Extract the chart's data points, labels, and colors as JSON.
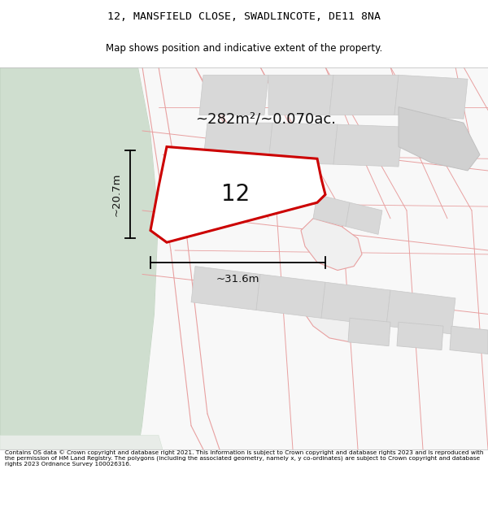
{
  "title": "12, MANSFIELD CLOSE, SWADLINCOTE, DE11 8NA",
  "subtitle": "Map shows position and indicative extent of the property.",
  "footer": "Contains OS data © Crown copyright and database right 2021. This information is subject to Crown copyright and database rights 2023 and is reproduced with the permission of HM Land Registry. The polygons (including the associated geometry, namely x, y co-ordinates) are subject to Crown copyright and database rights 2023 Ordnance Survey 100026316.",
  "area_label": "~282m²/~0.070ac.",
  "number_label": "12",
  "width_label": "~31.6m",
  "height_label": "~20.7m",
  "bg_color": "#f5f5f5",
  "green_color": "#cfdecf",
  "road_line_color": "#e8a0a0",
  "plot_outline_color": "#cc0000",
  "plot_fill_color": "#ffffff",
  "building_fill": "#d8d8d8",
  "building_edge": "#c8c8c8",
  "fig_width": 6.0,
  "fig_height": 6.25
}
